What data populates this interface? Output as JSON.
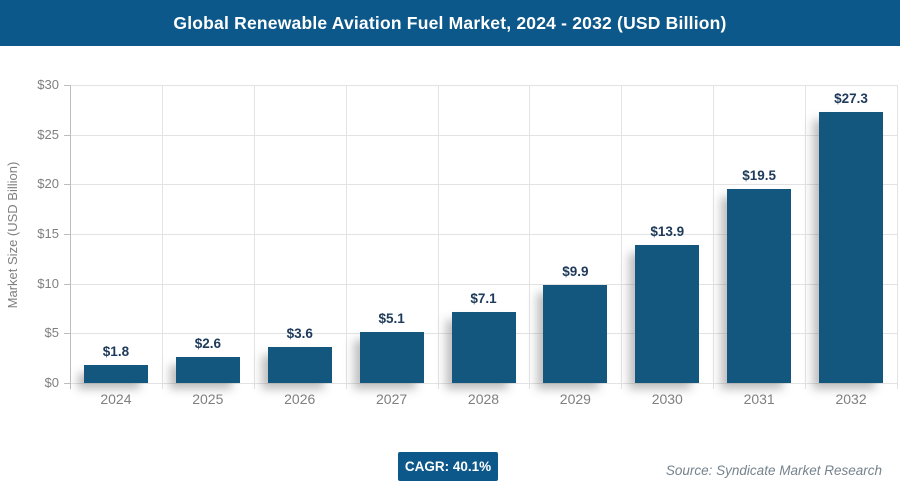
{
  "header": {
    "title": "Global Renewable Aviation Fuel Market, 2024 - 2032 (USD Billion)"
  },
  "chart_data": {
    "type": "bar",
    "title": "Global Renewable Aviation Fuel Market, 2024 - 2032 (USD Billion)",
    "categories": [
      "2024",
      "2025",
      "2026",
      "2027",
      "2028",
      "2029",
      "2030",
      "2031",
      "2032"
    ],
    "values": [
      1.8,
      2.6,
      3.6,
      5.1,
      7.1,
      9.9,
      13.9,
      19.5,
      27.3
    ],
    "value_labels": [
      "$1.8",
      "$2.6",
      "$3.6",
      "$5.1",
      "$7.1",
      "$9.9",
      "$13.9",
      "$19.5",
      "$27.3"
    ],
    "xlabel": "",
    "ylabel": "Market Size (USD Billion)",
    "ylim": [
      0,
      30
    ],
    "yticks": [
      0,
      5,
      10,
      15,
      20,
      25,
      30
    ],
    "ytick_labels": [
      "$0",
      "$5",
      "$10",
      "$15",
      "$20",
      "$25",
      "$30"
    ],
    "grid": true,
    "legend": false
  },
  "footer": {
    "cagr_label": "CAGR: 40.1%",
    "source": "Source: Syndicate Market Research"
  },
  "colors": {
    "banner_bg": "#0d588a",
    "bar_fill": "#13567e",
    "value_label": "#1e3a5a",
    "axis_text": "#7f7f7f",
    "gridline": "#e3e3e3",
    "axis_line": "#bdbdbd",
    "badge_bg": "#0d588a",
    "badge_text": "#ffffff",
    "source_text": "#75838c",
    "title_text": "#ffffff"
  }
}
